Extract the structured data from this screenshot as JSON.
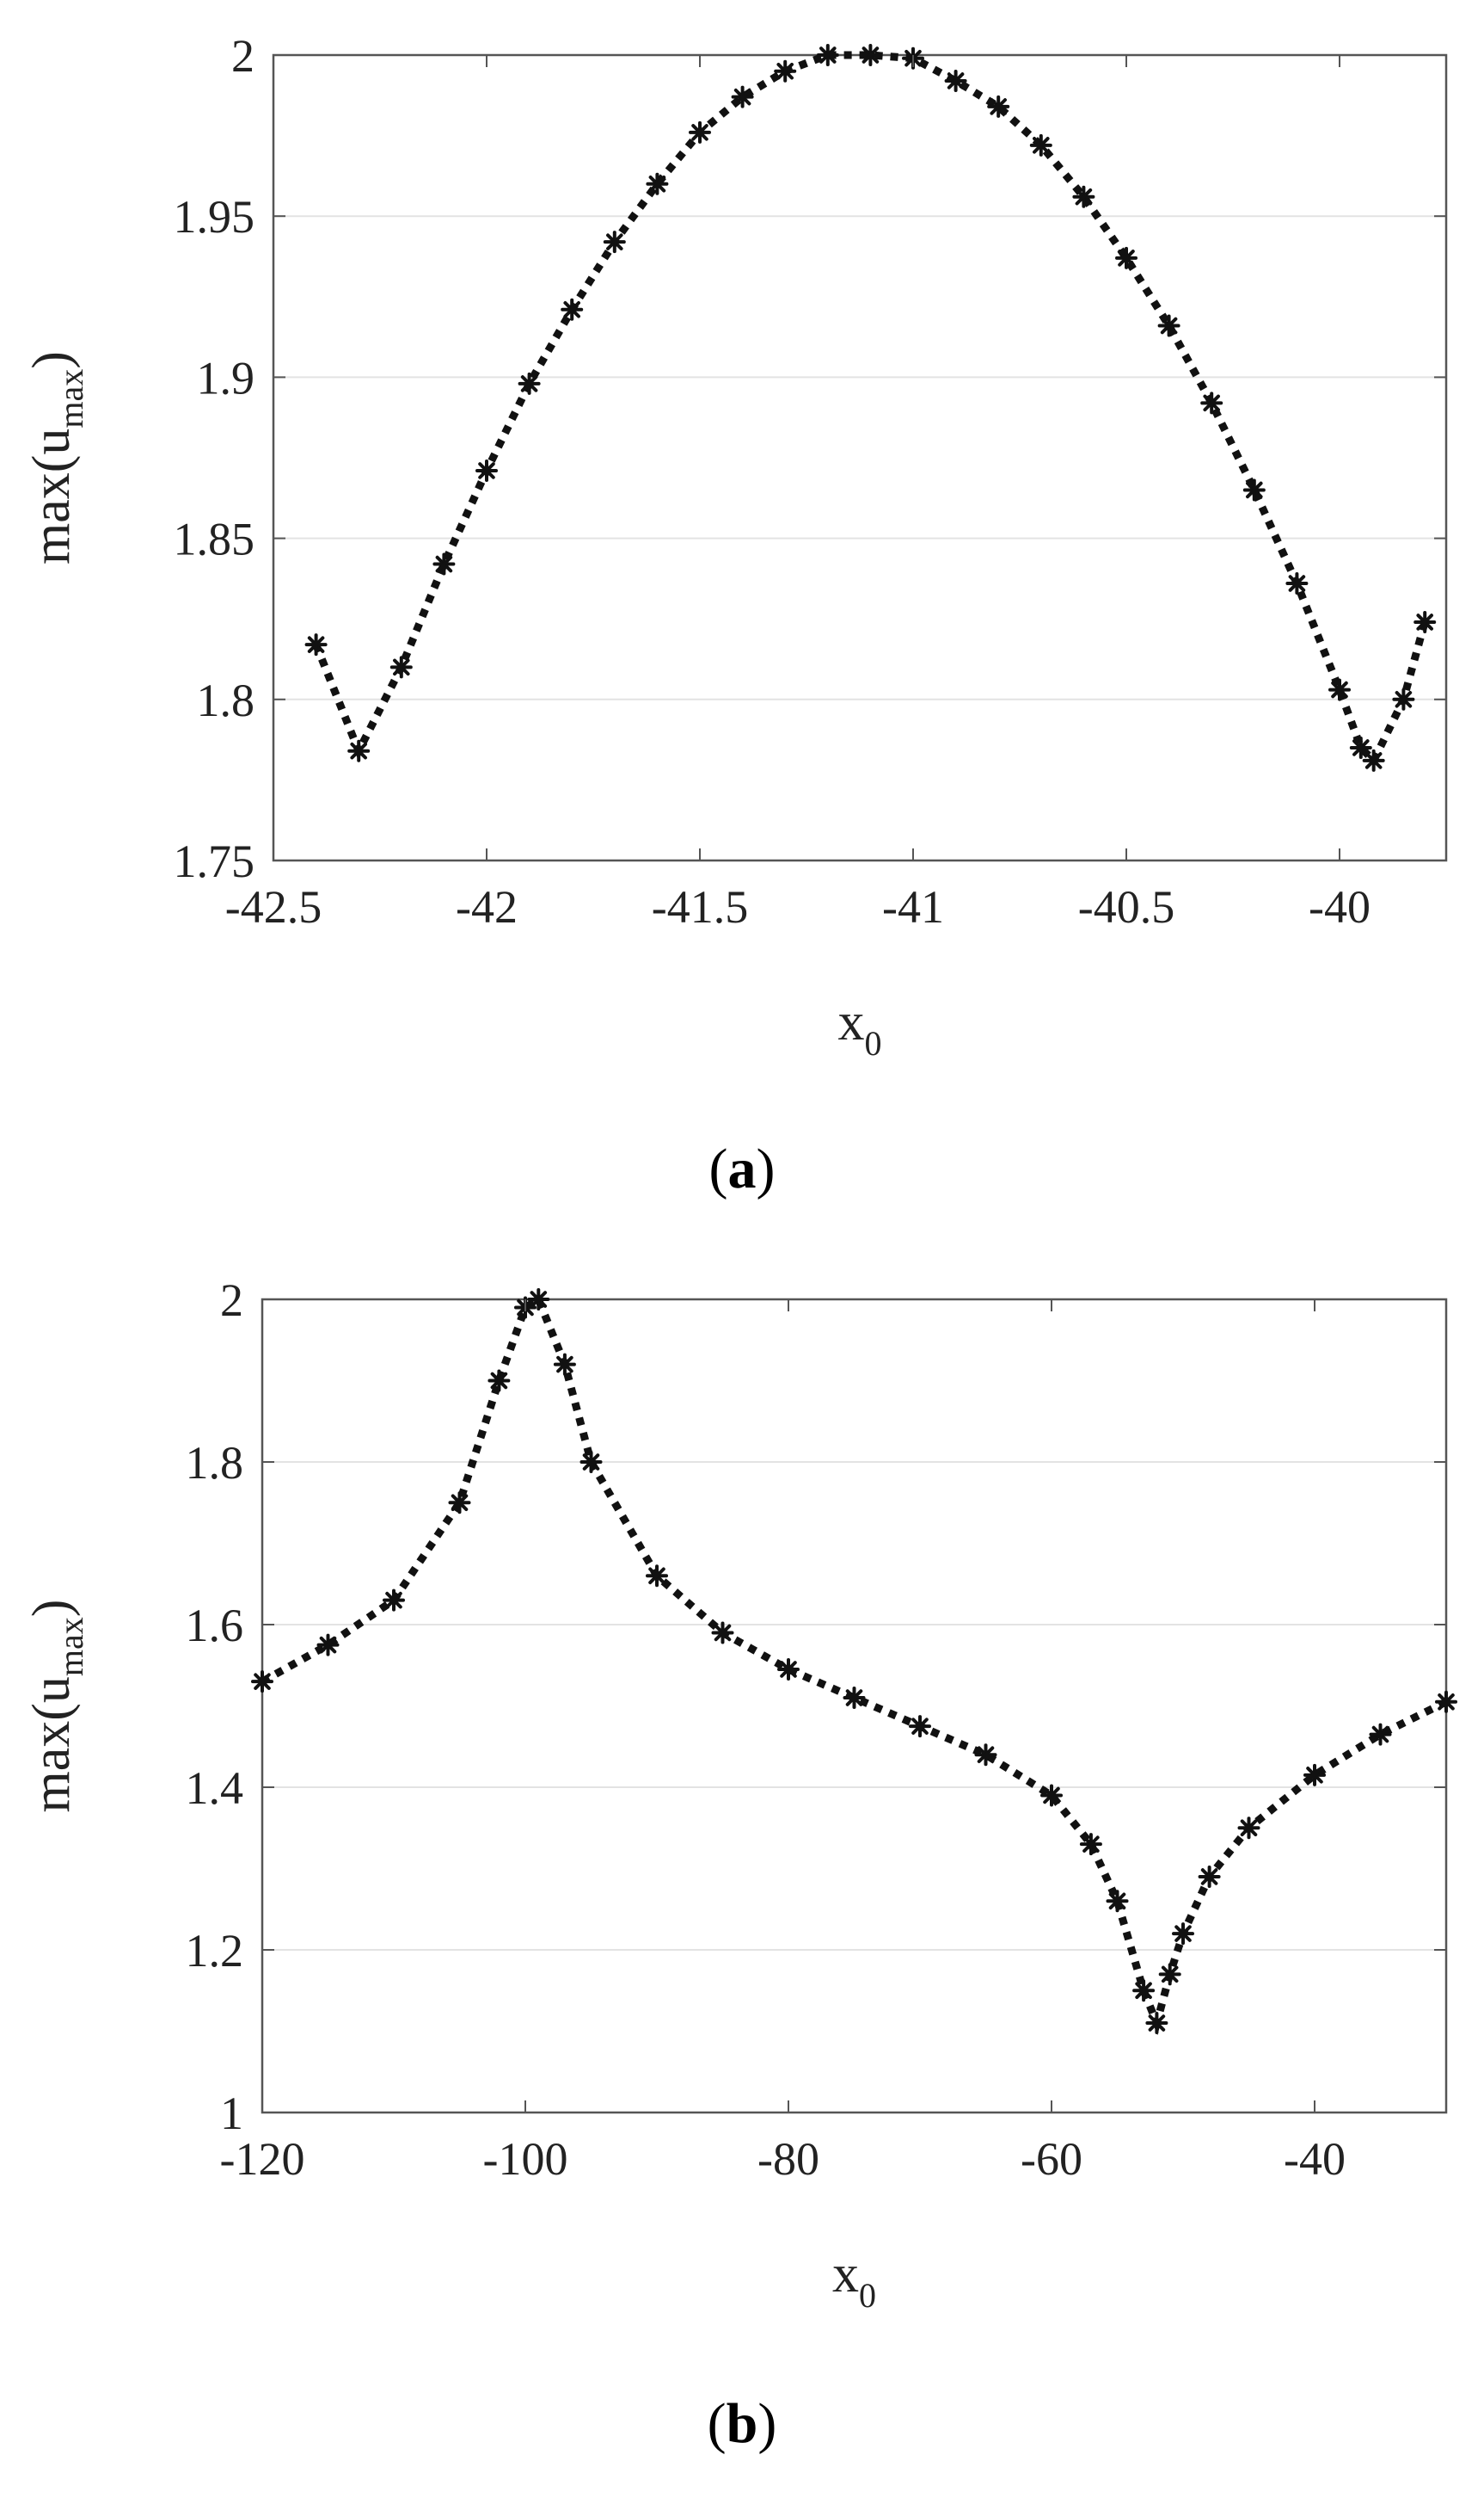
{
  "chart_data": [
    {
      "type": "line",
      "panel_label": "a",
      "xlabel": {
        "base": "x",
        "sub": "0"
      },
      "ylabel": {
        "pre": "max(u",
        "sub": "max",
        "post": ")"
      },
      "xlim": [
        -42.5,
        -39.75
      ],
      "ylim": [
        1.75,
        2.0
      ],
      "xticks": [
        -42.5,
        -42,
        -41.5,
        -41,
        -40.5,
        -40
      ],
      "xtick_labels": [
        "-42.5",
        "-42",
        "-41.5",
        "-41",
        "-40.5",
        "-40"
      ],
      "yticks": [
        1.75,
        1.8,
        1.85,
        1.9,
        1.95,
        2.0
      ],
      "ytick_labels": [
        "1.75",
        "1.8",
        "1.85",
        "1.9",
        "1.95",
        "2"
      ],
      "grid": "horizontal",
      "series": [
        {
          "line_style": "dotted",
          "marker": "asterisk",
          "color": "#111111",
          "x": [
            -42.4,
            -42.3,
            -42.2,
            -42.1,
            -42.0,
            -41.9,
            -41.8,
            -41.7,
            -41.6,
            -41.5,
            -41.4,
            -41.3,
            -41.2,
            -41.1,
            -41.0,
            -40.9,
            -40.8,
            -40.7,
            -40.6,
            -40.5,
            -40.4,
            -40.3,
            -40.2,
            -40.1,
            -40.0,
            -39.95,
            -39.92,
            -39.85,
            -39.8
          ],
          "y": [
            1.817,
            1.784,
            1.81,
            1.842,
            1.871,
            1.898,
            1.921,
            1.942,
            1.96,
            1.976,
            1.987,
            1.995,
            2.0,
            2.0,
            1.999,
            1.992,
            1.984,
            1.972,
            1.956,
            1.937,
            1.916,
            1.892,
            1.865,
            1.836,
            1.803,
            1.785,
            1.781,
            1.8,
            1.824
          ]
        }
      ],
      "caption": "a"
    },
    {
      "type": "line",
      "panel_label": "b",
      "xlabel": {
        "base": "x",
        "sub": "0"
      },
      "ylabel": {
        "pre": "max(u",
        "sub": "max",
        "post": ")"
      },
      "xlim": [
        -120,
        -30
      ],
      "ylim": [
        1.0,
        2.0
      ],
      "xticks": [
        -120,
        -100,
        -80,
        -60,
        -40
      ],
      "xtick_labels": [
        "-120",
        "-100",
        "-80",
        "-60",
        "-40"
      ],
      "yticks": [
        1.0,
        1.2,
        1.4,
        1.6,
        1.8,
        2.0
      ],
      "ytick_labels": [
        "1",
        "1.2",
        "1.4",
        "1.6",
        "1.8",
        "2"
      ],
      "grid": "horizontal",
      "series": [
        {
          "line_style": "dotted",
          "marker": "asterisk",
          "color": "#111111",
          "x": [
            -120,
            -115,
            -110,
            -105,
            -102,
            -100,
            -99,
            -97,
            -95,
            -90,
            -85,
            -80,
            -75,
            -70,
            -65,
            -60,
            -57,
            -55,
            -53,
            -52,
            -51,
            -50,
            -48,
            -45,
            -40,
            -35,
            -30
          ],
          "y": [
            1.53,
            1.575,
            1.63,
            1.75,
            1.9,
            1.99,
            2.0,
            1.92,
            1.8,
            1.66,
            1.59,
            1.545,
            1.51,
            1.475,
            1.44,
            1.39,
            1.33,
            1.26,
            1.15,
            1.11,
            1.17,
            1.22,
            1.29,
            1.35,
            1.415,
            1.465,
            1.505
          ]
        }
      ],
      "caption": "b"
    }
  ]
}
